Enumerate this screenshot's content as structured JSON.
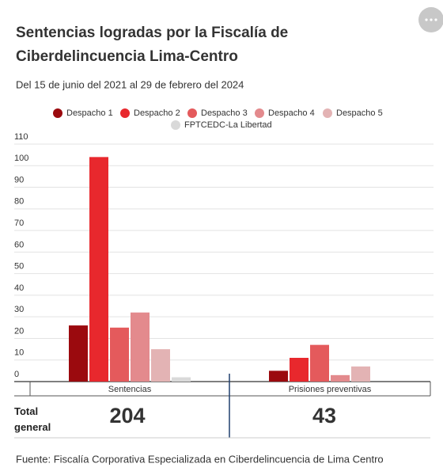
{
  "chart_data": {
    "type": "bar",
    "title": [
      "Sentencias logradas por la Fiscalía de",
      "Ciberdelincuencia Lima-Centro"
    ],
    "subtitle": "Del 15 de junio del 2021 al 29 de febrero del 2024",
    "categories": [
      "Sentencias",
      "Prisiones preventivas"
    ],
    "series": [
      {
        "name": "Despacho 1",
        "color": "#9b0a0e",
        "values": [
          26,
          5
        ]
      },
      {
        "name": "Despacho 2",
        "color": "#e8282d",
        "values": [
          104,
          11
        ]
      },
      {
        "name": "Despacho 3",
        "color": "#e45a5c",
        "values": [
          25,
          17
        ]
      },
      {
        "name": "Despacho 4",
        "color": "#e38a8d",
        "values": [
          32,
          3
        ]
      },
      {
        "name": "Despacho 5",
        "color": "#e3b3b4",
        "values": [
          15,
          7
        ]
      },
      {
        "name": "FPTCEDC-La Libertad",
        "color": "#d9d9d9",
        "values": [
          2,
          0
        ]
      }
    ],
    "ylim": [
      0,
      110
    ],
    "yticks": [
      0,
      10,
      20,
      30,
      40,
      50,
      60,
      70,
      80,
      90,
      100,
      110
    ],
    "grid": true
  },
  "totals": {
    "label": "Total general",
    "values": [
      204,
      43
    ]
  },
  "source": "Fuente: Fiscalía Corporativa Especializada en Ciberdelincuencia de Lima Centro"
}
